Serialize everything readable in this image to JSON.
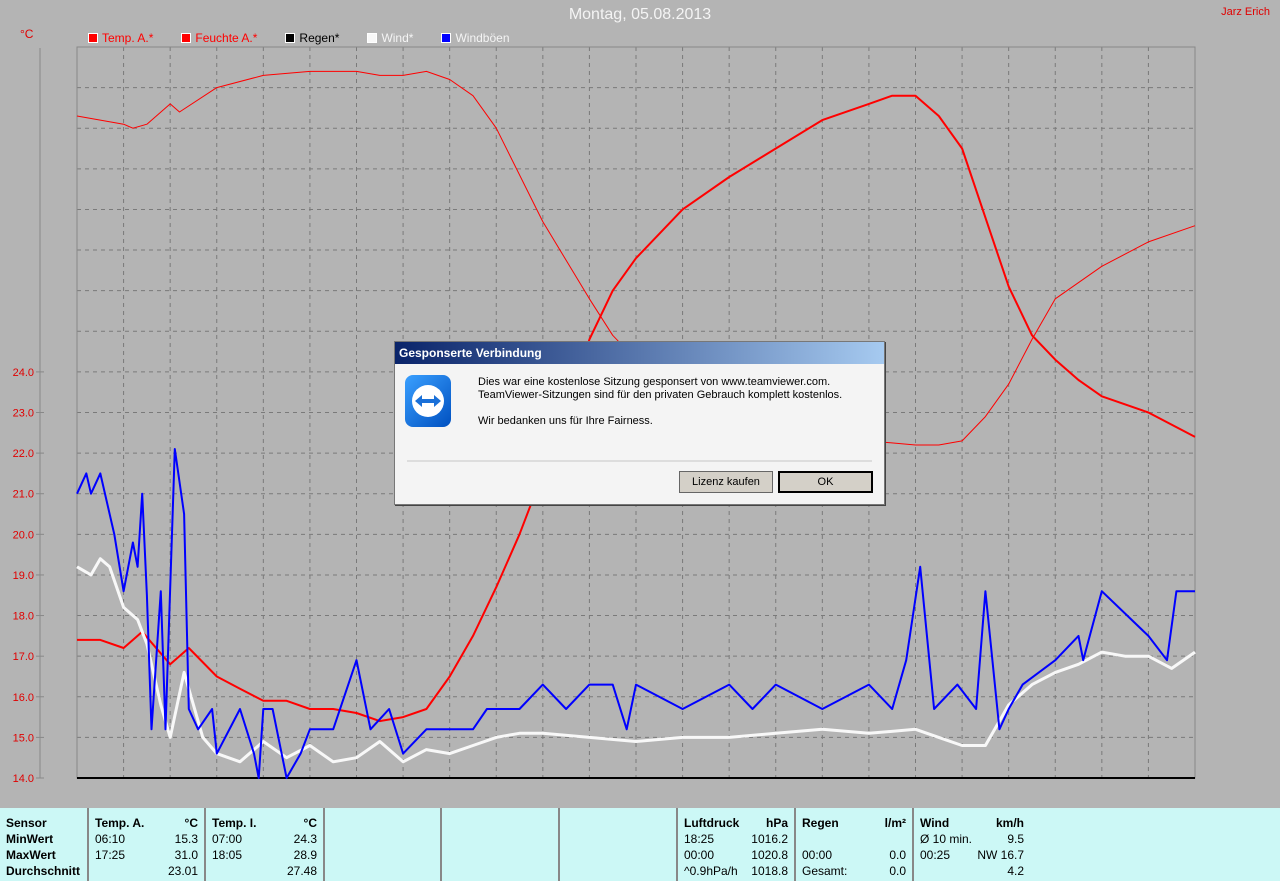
{
  "header": {
    "title": "Montag, 05.08.2013",
    "author": "Jarz Erich",
    "unit": "°C"
  },
  "chart_data": {
    "type": "line",
    "xlim": [
      0,
      24
    ],
    "ylim": [
      14,
      32
    ],
    "grid": true,
    "legend_placement": "top-left",
    "y_ticks": [
      "14.0",
      "15.0",
      "16.0",
      "17.0",
      "18.0",
      "19.0",
      "20.0",
      "21.0",
      "22.0",
      "23.0",
      "24.0"
    ],
    "series": [
      {
        "name": "Temp. A.*",
        "color": "#ff0000",
        "width": 2,
        "x": [
          0,
          0.5,
          1,
          1.4,
          2,
          2.4,
          3,
          3.5,
          4,
          4.5,
          5,
          5.5,
          6,
          6.5,
          7,
          7.5,
          8,
          8.5,
          9,
          9.5,
          10,
          10.5,
          11,
          11.5,
          12,
          13,
          14,
          15,
          16,
          17,
          17.5,
          18,
          18.5,
          19,
          19.5,
          20,
          20.5,
          21,
          21.5,
          22,
          23,
          24
        ],
        "y": [
          17.4,
          17.4,
          17.2,
          17.6,
          16.8,
          17.2,
          16.5,
          16.2,
          15.9,
          15.9,
          15.7,
          15.7,
          15.6,
          15.4,
          15.5,
          15.7,
          16.5,
          17.5,
          18.7,
          20,
          21.5,
          23,
          24.8,
          26,
          26.8,
          28,
          28.8,
          29.5,
          30.2,
          30.6,
          30.8,
          30.8,
          30.3,
          29.5,
          27.8,
          26.1,
          24.9,
          24.3,
          23.8,
          23.4,
          23,
          22.4
        ]
      },
      {
        "name": "Feuchte A.*",
        "color": "#ff0000",
        "width": 1,
        "x": [
          0,
          0.5,
          1,
          1.2,
          1.5,
          2,
          2.2,
          3,
          4,
          5,
          6,
          6.5,
          7,
          7.5,
          8,
          8.5,
          9,
          10,
          11,
          11.5,
          12,
          12.5,
          13,
          14,
          15,
          16,
          17,
          18,
          18.5,
          19,
          19.5,
          20,
          20.5,
          21,
          22,
          23,
          24
        ],
        "y": [
          30.3,
          30.2,
          30.1,
          30,
          30.1,
          30.6,
          30.4,
          31,
          31.3,
          31.4,
          31.4,
          31.3,
          31.3,
          31.4,
          31.2,
          30.8,
          30,
          27.7,
          25.8,
          24.9,
          24.3,
          24,
          23.6,
          23.2,
          22.8,
          22.5,
          22.3,
          22.2,
          22.2,
          22.3,
          22.9,
          23.7,
          24.8,
          25.8,
          26.6,
          27.2,
          27.6
        ]
      },
      {
        "name": "Regen*",
        "color": "#000000",
        "width": 1,
        "x": [
          0,
          24
        ],
        "y": [
          14,
          14
        ]
      },
      {
        "name": "Wind*",
        "color": "#f8f8f8",
        "width": 3,
        "x": [
          0,
          0.3,
          0.5,
          0.7,
          1,
          1.3,
          1.5,
          1.8,
          2,
          2.3,
          2.7,
          3,
          3.5,
          4,
          4.5,
          5,
          5.5,
          6,
          6.5,
          7,
          7.5,
          8,
          8.5,
          9,
          9.5,
          10,
          11,
          12,
          13,
          14,
          15,
          16,
          17,
          18,
          18.5,
          19,
          19.5,
          20,
          20.5,
          21,
          21.5,
          22,
          22.5,
          23,
          23.5,
          24
        ],
        "y": [
          19.2,
          19,
          19.4,
          19.2,
          18.2,
          17.9,
          17.3,
          15.8,
          15,
          16.6,
          15,
          14.6,
          14.4,
          14.9,
          14.5,
          14.8,
          14.4,
          14.5,
          14.9,
          14.4,
          14.7,
          14.6,
          14.8,
          15,
          15.1,
          15.1,
          15,
          14.9,
          15,
          15,
          15.1,
          15.2,
          15.1,
          15.2,
          15.0,
          14.8,
          14.8,
          15.8,
          16.3,
          16.6,
          16.8,
          17.1,
          17,
          17,
          16.7,
          17.1
        ]
      },
      {
        "name": "Windböen",
        "color": "#0000ff",
        "width": 2,
        "x": [
          0,
          0.2,
          0.3,
          0.5,
          0.8,
          1,
          1.2,
          1.3,
          1.4,
          1.5,
          1.6,
          1.8,
          1.9,
          2.1,
          2.3,
          2.4,
          2.6,
          2.9,
          3,
          3.5,
          3.8,
          3.9,
          4,
          4.2,
          4.5,
          4.8,
          5,
          5.5,
          6,
          6.3,
          6.7,
          7,
          7.5,
          8,
          8.5,
          8.8,
          9.5,
          10,
          10.5,
          11,
          11.5,
          11.8,
          12,
          13,
          14,
          14.5,
          15,
          16,
          17,
          17.5,
          17.8,
          18.1,
          18.4,
          18.9,
          19.3,
          19.5,
          19.8,
          20,
          20.3,
          21,
          21.5,
          21.6,
          22,
          23,
          23.4,
          23.6,
          24
        ],
        "y": [
          21,
          21.5,
          21,
          21.5,
          20,
          18.6,
          19.8,
          19.2,
          21,
          18.5,
          15.2,
          18.6,
          15.2,
          22.1,
          20.5,
          15.7,
          15.2,
          15.7,
          14.6,
          15.7,
          14.6,
          14,
          15.7,
          15.7,
          14,
          14.6,
          15.2,
          15.2,
          16.9,
          15.2,
          15.7,
          14.6,
          15.2,
          15.2,
          15.2,
          15.7,
          15.7,
          16.3,
          15.7,
          16.3,
          16.3,
          15.2,
          16.3,
          15.7,
          16.3,
          15.7,
          16.3,
          15.7,
          16.3,
          15.7,
          16.9,
          19.2,
          15.7,
          16.3,
          15.7,
          18.6,
          15.2,
          15.7,
          16.3,
          16.9,
          17.5,
          16.9,
          18.6,
          17.5,
          16.9,
          18.6,
          18.6
        ]
      }
    ]
  },
  "stats": {
    "temp_a": {
      "header": [
        "Temp. A.",
        "°C"
      ],
      "min": [
        "06:10",
        "15.3"
      ],
      "max": [
        "17:25",
        "31.0"
      ],
      "avg": "23.01"
    },
    "temp_i": {
      "header": [
        "Temp. I.",
        "°C"
      ],
      "min": [
        "07:00",
        "24.3"
      ],
      "max": [
        "18:05",
        "28.9"
      ],
      "avg": "27.48"
    },
    "labels": {
      "sensor": "Sensor",
      "min": "MinWert",
      "max": "MaxWert",
      "avg": "Durchschnitt"
    },
    "luftdruck": {
      "header": [
        "Luftdruck",
        "hPa"
      ],
      "r1": [
        "18:25",
        "1016.2"
      ],
      "r2": [
        "00:00",
        "1020.8"
      ],
      "r3": [
        "^0.9hPa/h",
        "1018.8"
      ]
    },
    "regen": {
      "header": [
        "Regen",
        "l/m²"
      ],
      "r2": [
        "00:00",
        "0.0"
      ],
      "r3": [
        "Gesamt:",
        "0.0"
      ]
    },
    "wind": {
      "header": [
        "Wind",
        "km/h"
      ],
      "r1": [
        "Ø 10 min.",
        "9.5"
      ],
      "r2": [
        "00:25",
        "NW 16.7"
      ],
      "r3": [
        "",
        "4.2"
      ]
    }
  },
  "dialog": {
    "title": "Gesponserte Verbindung",
    "line1": "Dies war eine kostenlose Sitzung gesponsert von www.teamviewer.com.",
    "line2": "TeamViewer-Sitzungen sind für den privaten Gebrauch komplett kostenlos.",
    "line3": "Wir bedanken uns für Ihre Fairness.",
    "buy_label": "Lizenz kaufen",
    "ok_label": "OK"
  }
}
